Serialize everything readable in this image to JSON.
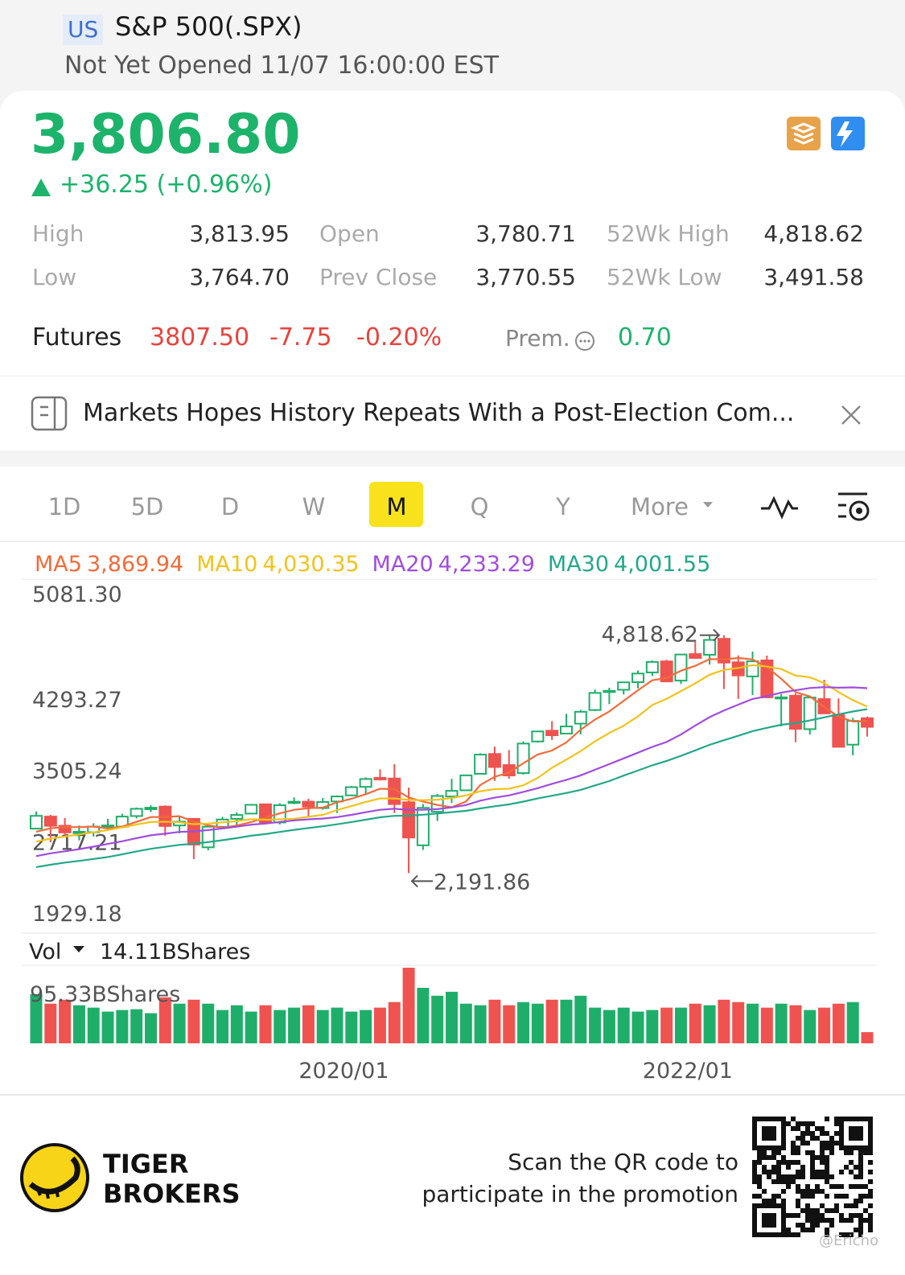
{
  "header": {
    "market": "US",
    "name": "S&P 500(.SPX)",
    "status": "Not Yet Opened 11/07 16:00:00 EST"
  },
  "quote": {
    "price": "3,806.80",
    "change": "+36.25 (+0.96%)",
    "stats": [
      {
        "label": "High",
        "value": "3,813.95"
      },
      {
        "label": "Open",
        "value": "3,780.71"
      },
      {
        "label": "52Wk High",
        "value": "4,818.62"
      },
      {
        "label": "Low",
        "value": "3,764.70"
      },
      {
        "label": "Prev Close",
        "value": "3,770.55"
      },
      {
        "label": "52Wk Low",
        "value": "3,491.58"
      }
    ]
  },
  "futures": {
    "label": "Futures",
    "price": "3807.50",
    "change": "-7.75",
    "percent": "-0.20%",
    "premium_label": "Prem.",
    "premium": "0.70"
  },
  "news": {
    "headline": "Markets Hopes History Repeats With a Post-Election Com..."
  },
  "tabs": {
    "items": [
      "1D",
      "5D",
      "D",
      "W",
      "M",
      "Q",
      "Y",
      "More"
    ],
    "active": 4
  },
  "chart_data": {
    "type": "candlestick",
    "categories": [
      null,
      null,
      null,
      null,
      null,
      null,
      null,
      null,
      null,
      null,
      null,
      null,
      null,
      null,
      null,
      null,
      null,
      null,
      null,
      null,
      null,
      null,
      null,
      null,
      "2020/01",
      null,
      null,
      null,
      null,
      null,
      null,
      null,
      null,
      null,
      null,
      null,
      null,
      null,
      null,
      null,
      null,
      null,
      null,
      null,
      null,
      null,
      null,
      null,
      "2022/01",
      null,
      null,
      null,
      null,
      null,
      null,
      null,
      null,
      null,
      null
    ],
    "open": [
      2683,
      2816,
      2715,
      2633,
      2643,
      2718,
      2705,
      2822,
      2897,
      2926,
      2718,
      2791,
      2477,
      2703,
      2791,
      2849,
      2952,
      2751,
      2971,
      2980,
      2910,
      2983,
      3050,
      3144,
      3244,
      3236,
      2974,
      2499,
      2869,
      3038,
      3106,
      3288,
      3507,
      3385,
      3296,
      3645,
      3764,
      3732,
      3842,
      3992,
      4191,
      4216,
      4300,
      4407,
      4529,
      4317,
      4610,
      4602,
      4778,
      4519,
      4363,
      4540,
      4131,
      4150,
      3781,
      4113,
      3937,
      3610,
      3902
    ],
    "high": [
      2872,
      2835,
      2801,
      2718,
      2742,
      2791,
      2848,
      2916,
      2941,
      2940,
      2815,
      2800,
      2708,
      2813,
      2861,
      2950,
      2955,
      2964,
      3028,
      3013,
      3022,
      3050,
      3154,
      3248,
      3338,
      3394,
      3136,
      2955,
      3068,
      3233,
      3280,
      3515,
      3588,
      3550,
      3646,
      3760,
      3870,
      3950,
      3994,
      4218,
      4238,
      4302,
      4429,
      4538,
      4546,
      4608,
      4744,
      4808,
      4818.62,
      4595,
      4637,
      4593,
      4169,
      4177,
      4140,
      4325,
      4120,
      3906,
      3920
    ],
    "low": [
      2683,
      2533,
      2585,
      2553,
      2595,
      2698,
      2699,
      2796,
      2865,
      2603,
      2631,
      2347,
      2444,
      2682,
      2722,
      2848,
      2751,
      2729,
      2952,
      2822,
      2892,
      2856,
      3050,
      3070,
      3214,
      2855,
      2191.86,
      2448,
      2767,
      2966,
      3101,
      3280,
      3210,
      3234,
      3279,
      3633,
      3662,
      3725,
      3723,
      3980,
      4057,
      4165,
      4233,
      4368,
      4306,
      4279,
      4560,
      4495,
      4223,
      4115,
      4157,
      4124,
      3811,
      3637,
      3722,
      3955,
      3584,
      3492,
      3699
    ],
    "close": [
      2824,
      2714,
      2641,
      2648,
      2705,
      2718,
      2816,
      2902,
      2914,
      2712,
      2760,
      2507,
      2704,
      2784,
      2834,
      2946,
      2752,
      2942,
      2980,
      2926,
      2977,
      3038,
      3141,
      3231,
      3226,
      2954,
      2585,
      2912,
      3044,
      3100,
      3271,
      3500,
      3363,
      3270,
      3622,
      3756,
      3714,
      3811,
      3973,
      4181,
      4204,
      4298,
      4395,
      4523,
      4308,
      4605,
      4567,
      4766,
      4516,
      4374,
      4530,
      4132,
      4132,
      3785,
      4130,
      3955,
      3586,
      3872,
      3806.8
    ],
    "up_color": "#1fae6a",
    "down_color": "#ef5350",
    "ylim": [
      1929.18,
      5081.3
    ],
    "yticks": [
      1929.18,
      2717.21,
      3505.24,
      4293.27,
      {
        "value": 5081.3,
        "label": "5081.30"
      }
    ],
    "ma": [
      {
        "name": "MA5",
        "value_label": "3,869.94",
        "color": "#f26b3a",
        "values": [
          2648,
          2687,
          2700,
          2700,
          2706,
          2685,
          2706,
          2758,
          2811,
          2812,
          2821,
          2759,
          2719,
          2693,
          2718,
          2755,
          2804,
          2852,
          2891,
          2909,
          2915,
          2973,
          3012,
          3063,
          3123,
          3118,
          3027,
          2982,
          2944,
          2919,
          2982,
          3165,
          3256,
          3301,
          3405,
          3502,
          3545,
          3635,
          3775,
          3887,
          3977,
          4093,
          4210,
          4320,
          4346,
          4426,
          4480,
          4554,
          4552,
          4566,
          4551,
          4464,
          4337,
          4191,
          4142,
          4027,
          3918,
          3866,
          3869.94
        ]
      },
      {
        "name": "MA10",
        "value_label": "4,030.35",
        "color": "#f2c21b",
        "values": [
          2540,
          2573,
          2596,
          2619,
          2642,
          2667,
          2696,
          2729,
          2756,
          2759,
          2753,
          2732,
          2739,
          2752,
          2765,
          2788,
          2782,
          2786,
          2792,
          2814,
          2835,
          2888,
          2932,
          2977,
          3016,
          3017,
          3000,
          2997,
          3003,
          3021,
          3050,
          3096,
          3119,
          3123,
          3162,
          3242,
          3355,
          3445,
          3538,
          3646,
          3739,
          3819,
          3922,
          4048,
          4116,
          4201,
          4287,
          4382,
          4436,
          4456,
          4488,
          4472,
          4445,
          4372,
          4354,
          4289,
          4191,
          4101,
          4030.35
        ]
      },
      {
        "name": "MA20",
        "value_label": "4,233.29",
        "color": "#a04ce0",
        "values": [
          2379,
          2410,
          2433,
          2457,
          2484,
          2514,
          2544,
          2578,
          2609,
          2627,
          2647,
          2653,
          2667,
          2685,
          2704,
          2727,
          2739,
          2757,
          2774,
          2786,
          2794,
          2810,
          2835,
          2864,
          2891,
          2902,
          2891,
          2891,
          2898,
          2917,
          2943,
          2992,
          3025,
          3050,
          3089,
          3130,
          3178,
          3221,
          3271,
          3333,
          3395,
          3458,
          3521,
          3585,
          3639,
          3722,
          3821,
          3914,
          3987,
          4051,
          4114,
          4145,
          4184,
          4210,
          4235,
          4245,
          4239,
          4242,
          4233.29
        ]
      },
      {
        "name": "MA30",
        "value_label": "4,001.55",
        "color": "#23a88a",
        "values": [
          2259,
          2284,
          2308,
          2327,
          2348,
          2370,
          2399,
          2432,
          2460,
          2482,
          2504,
          2517,
          2535,
          2555,
          2578,
          2605,
          2623,
          2647,
          2670,
          2689,
          2709,
          2731,
          2756,
          2782,
          2808,
          2824,
          2826,
          2837,
          2850,
          2865,
          2879,
          2906,
          2930,
          2950,
          2981,
          3016,
          3046,
          3076,
          3111,
          3160,
          3208,
          3268,
          3324,
          3382,
          3431,
          3487,
          3547,
          3608,
          3659,
          3708,
          3759,
          3796,
          3829,
          3847,
          3877,
          3911,
          3944,
          3976,
          4001.55
        ]
      }
    ],
    "annotations": {
      "max_label": "4,818.62",
      "min_label": "2,191.86"
    },
    "volume": {
      "label": "Vol",
      "current": "14.11BShares",
      "ylim": [
        0,
        95.33
      ],
      "yticks": [
        {
          "value": 95.33,
          "label": "95.33BShares"
        }
      ],
      "values": [
        62,
        50,
        55,
        48,
        45,
        40,
        42,
        43,
        38,
        58,
        50,
        55,
        50,
        42,
        48,
        40,
        48,
        42,
        45,
        48,
        42,
        45,
        40,
        42,
        45,
        52,
        95.33,
        70,
        60,
        65,
        50,
        48,
        55,
        48,
        52,
        50,
        55,
        55,
        60,
        45,
        42,
        45,
        40,
        42,
        45,
        45,
        50,
        48,
        55,
        52,
        50,
        45,
        50,
        48,
        42,
        45,
        50,
        52,
        14.11
      ]
    }
  },
  "footer": {
    "brand": [
      "TIGER",
      "BROKERS"
    ],
    "promo": [
      "Scan the QR code to",
      "participate in the promotion"
    ],
    "watermark": "@Ericho"
  }
}
